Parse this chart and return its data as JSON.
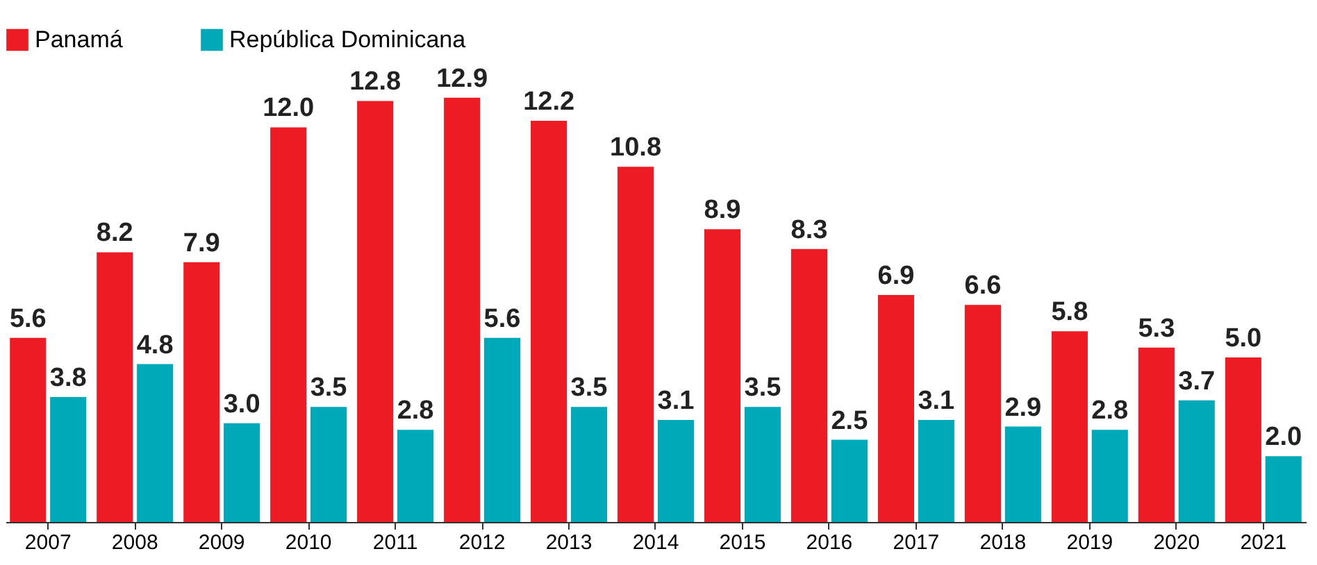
{
  "chart_data": {
    "type": "bar",
    "categories": [
      "2007",
      "2008",
      "2009",
      "2010",
      "2011",
      "2012",
      "2013",
      "2014",
      "2015",
      "2016",
      "2017",
      "2018",
      "2019",
      "2020",
      "2021"
    ],
    "series": [
      {
        "name": "Panamá",
        "color": "#ed1c24",
        "values": [
          5.6,
          8.2,
          7.9,
          12.0,
          12.8,
          12.9,
          12.2,
          10.8,
          8.9,
          8.3,
          6.9,
          6.6,
          5.8,
          5.3,
          5.0
        ],
        "value_labels": [
          "5.6",
          "8.2",
          "7.9",
          "12.0",
          "12.8",
          "12.9",
          "12.2",
          "10.8",
          "8.9",
          "8.3",
          "6.9",
          "6.6",
          "5.8",
          "5.3",
          "5.0"
        ]
      },
      {
        "name": "República Dominicana",
        "color": "#00a9b8",
        "values": [
          3.8,
          4.8,
          3.0,
          3.5,
          2.8,
          5.6,
          3.5,
          3.1,
          3.5,
          2.5,
          3.1,
          2.9,
          2.8,
          3.7,
          2.0
        ],
        "value_labels": [
          "3.8",
          "4.8",
          "3.0",
          "3.5",
          "2.8",
          "5.6",
          "3.5",
          "3.1",
          "3.5",
          "2.5",
          "3.1",
          "2.9",
          "2.8",
          "3.7",
          "2.0"
        ]
      }
    ],
    "legend": "top left",
    "grid": false,
    "tick_labels": "x"
  }
}
